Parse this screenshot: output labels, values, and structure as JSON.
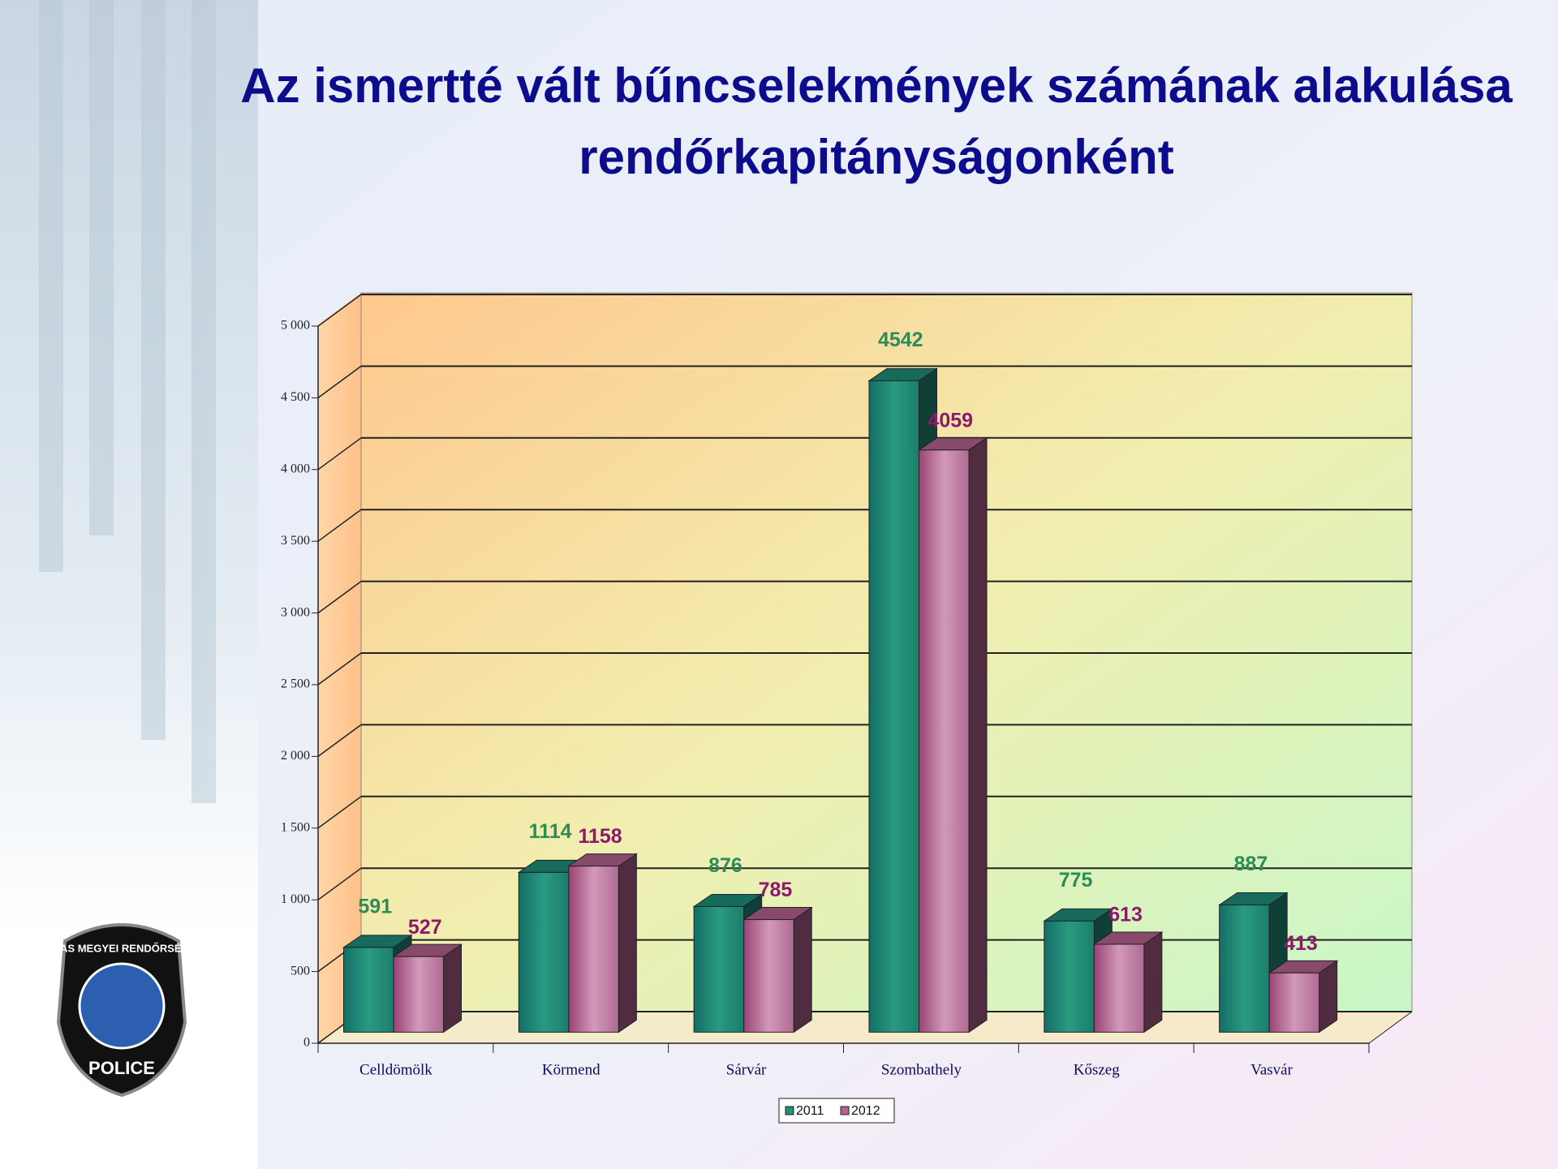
{
  "chart_data": {
    "type": "bar3d",
    "title": "Az ismertté vált bűncselekmények számának alakulása rendőrkapitányságonként",
    "categories": [
      "Celldömölk",
      "Körmend",
      "Sárvár",
      "Szombathely",
      "Kőszeg",
      "Vasvár"
    ],
    "series": [
      {
        "name": "2011",
        "color": "#1f8f7a",
        "label_color": "#2e8b57",
        "values": [
          591,
          1114,
          876,
          4542,
          775,
          887
        ]
      },
      {
        "name": "2012",
        "color": "#b5628f",
        "label_color": "#8b1a6b",
        "values": [
          527,
          1158,
          785,
          4059,
          613,
          413
        ]
      }
    ],
    "ylim": [
      0,
      5000
    ],
    "yticks": [
      0,
      500,
      {
        "value": 1000,
        "label": "1 000"
      },
      {
        "value": 1500,
        "label": "1 500"
      },
      {
        "value": 2000,
        "label": "2 000"
      },
      {
        "value": 2500,
        "label": "2 500"
      },
      {
        "value": 3000,
        "label": "3 000"
      },
      {
        "value": 3500,
        "label": "3 500"
      },
      {
        "value": 4000,
        "label": "4 000"
      },
      {
        "value": 4500,
        "label": "4 500"
      },
      {
        "value": 5000,
        "label": "5 000"
      }
    ],
    "grid": true,
    "legend": "bottom"
  },
  "logo": {
    "top": "VAS MEGYEI RENDŐRSÉG",
    "bottom": "POLICE"
  }
}
